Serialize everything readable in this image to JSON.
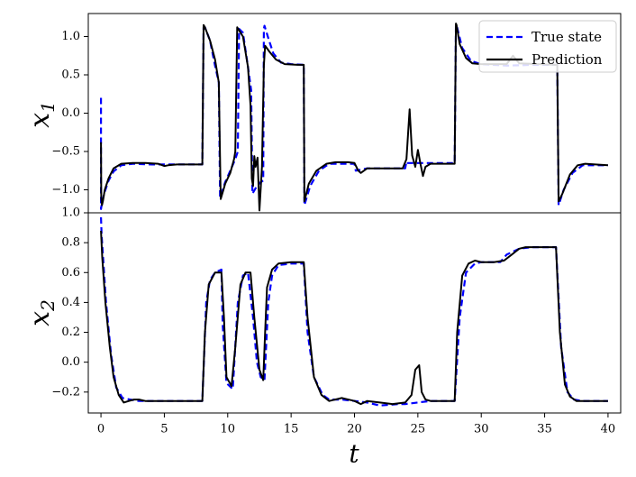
{
  "chart_data": {
    "type": "line",
    "xlabel": "t",
    "xlim": [
      -1,
      41
    ],
    "xticks": [
      "0",
      "5",
      "10",
      "15",
      "20",
      "25",
      "30",
      "35",
      "40"
    ],
    "legend": {
      "placement": "top-right",
      "entries": [
        "True state",
        "Prediction"
      ]
    },
    "colors": {
      "true_state": "#0000ff",
      "prediction": "#000000"
    },
    "grid": false,
    "panels": [
      {
        "ylabel": "x1",
        "ylabel_main": "x",
        "ylabel_sub": "1",
        "ylim": [
          -1.3,
          1.3
        ],
        "yticks": [
          "1.0",
          "0.5",
          "0.0",
          "−0.5",
          "−1.0"
        ],
        "series": [
          {
            "name": "True state",
            "style": "dashed",
            "x": [
              0,
              0.001,
              0.05,
              0.25,
              0.6,
              1.0,
              1.6,
              2.5,
              4.0,
              6.0,
              8.0,
              8.1,
              8.2,
              8.6,
              9.0,
              9.3,
              9.4,
              9.8,
              10.2,
              10.6,
              10.8,
              10.9,
              11.2,
              11.6,
              11.85,
              11.95,
              12.3,
              12.6,
              12.8,
              12.85,
              12.9,
              13.2,
              13.6,
              14.2,
              15.0,
              16.0,
              16.05,
              16.5,
              17.2,
              18.0,
              20.0,
              20.1,
              21.0,
              24.0,
              24.1,
              24.2,
              26.0,
              27.9,
              28.0,
              28.05,
              28.5,
              29.2,
              30.0,
              32.0,
              34.0,
              35.9,
              36.0,
              36.1,
              36.5,
              37.2,
              38.0,
              40.0
            ],
            "y": [
              0.2,
              -1.25,
              -1.2,
              -1.05,
              -0.88,
              -0.76,
              -0.68,
              -0.66,
              -0.67,
              -0.67,
              -0.67,
              1.12,
              1.12,
              0.95,
              0.62,
              0.4,
              -1.1,
              -0.9,
              -0.75,
              -0.6,
              -0.5,
              1.1,
              1.05,
              0.6,
              0.3,
              -1.05,
              -0.95,
              -0.9,
              -0.88,
              1.1,
              1.14,
              0.98,
              0.78,
              0.66,
              0.64,
              0.63,
              -1.2,
              -0.95,
              -0.75,
              -0.66,
              -0.66,
              -0.75,
              -0.72,
              -0.72,
              -0.63,
              -0.65,
              -0.65,
              -0.65,
              1.15,
              1.15,
              0.85,
              0.68,
              0.64,
              0.62,
              0.63,
              0.63,
              0.63,
              -1.2,
              -1.0,
              -0.78,
              -0.68,
              -0.68
            ]
          },
          {
            "name": "Prediction",
            "style": "solid",
            "x": [
              0,
              0.02,
              0.08,
              0.15,
              0.3,
              0.6,
              1.0,
              1.6,
              2.5,
              3.5,
              4.5,
              5.0,
              5.3,
              6.0,
              8.0,
              8.1,
              8.2,
              8.6,
              9.0,
              9.3,
              9.45,
              9.8,
              10.2,
              10.5,
              10.6,
              10.75,
              11.2,
              11.6,
              11.8,
              11.9,
              12.0,
              12.1,
              12.2,
              12.35,
              12.5,
              12.7,
              12.85,
              12.95,
              13.3,
              13.8,
              14.5,
              15.5,
              16.0,
              16.05,
              16.4,
              17.0,
              17.8,
              18.5,
              19.5,
              20.0,
              20.3,
              20.5,
              21.0,
              22.5,
              23.8,
              24.1,
              24.35,
              24.55,
              24.8,
              25.0,
              25.2,
              25.4,
              25.6,
              26.0,
              26.5,
              27.9,
              28.0,
              28.05,
              28.3,
              28.8,
              29.3,
              30.0,
              31.0,
              32.0,
              32.5,
              33.0,
              35.9,
              36.0,
              36.1,
              36.4,
              37.0,
              37.6,
              38.2,
              39.0,
              40.0
            ],
            "y": [
              -0.38,
              -1.1,
              -1.2,
              -1.15,
              -1.0,
              -0.85,
              -0.72,
              -0.66,
              -0.65,
              -0.65,
              -0.66,
              -0.69,
              -0.68,
              -0.67,
              -0.67,
              1.15,
              1.12,
              0.95,
              0.7,
              0.4,
              -1.12,
              -0.92,
              -0.78,
              -0.6,
              -0.5,
              1.12,
              1.0,
              0.6,
              0.1,
              -0.85,
              -0.95,
              -0.56,
              -0.7,
              -0.58,
              -1.27,
              -0.7,
              0.62,
              0.88,
              0.8,
              0.7,
              0.64,
              0.63,
              0.63,
              -1.15,
              -0.92,
              -0.75,
              -0.66,
              -0.64,
              -0.64,
              -0.65,
              -0.75,
              -0.78,
              -0.72,
              -0.72,
              -0.72,
              -0.6,
              0.05,
              -0.55,
              -0.7,
              -0.48,
              -0.66,
              -0.82,
              -0.7,
              -0.66,
              -0.66,
              -0.66,
              1.17,
              1.15,
              0.9,
              0.72,
              0.65,
              0.64,
              0.64,
              0.64,
              0.75,
              0.65,
              0.63,
              0.63,
              -1.15,
              -1.05,
              -0.8,
              -0.68,
              -0.66,
              -0.67,
              -0.68
            ]
          }
        ]
      },
      {
        "ylabel": "x2",
        "ylabel_main": "x",
        "ylabel_sub": "2",
        "ylim": [
          -0.34,
          1.0
        ],
        "yticks": [
          "1.0",
          "0.8",
          "0.6",
          "0.4",
          "0.2",
          "0.0",
          "−0.2"
        ],
        "series": [
          {
            "name": "True state",
            "style": "dashed",
            "x": [
              0,
              0.05,
              0.4,
              0.8,
              1.2,
              1.7,
              2.3,
              3.0,
              4.0,
              5.0,
              6.0,
              7.0,
              8.0,
              8.3,
              8.6,
              9.0,
              9.5,
              9.6,
              9.9,
              10.4,
              10.8,
              11.2,
              11.6,
              12.0,
              12.3,
              12.6,
              12.9,
              13.2,
              13.5,
              14.0,
              15.0,
              16.0,
              16.3,
              16.8,
              17.5,
              18.0,
              19.0,
              20.0,
              21.0,
              22.0,
              23.5,
              24.0,
              26.0,
              27.9,
              28.3,
              28.8,
              29.5,
              30.0,
              31.0,
              31.5,
              32.0,
              33.0,
              34.0,
              35.9,
              36.3,
              36.8,
              37.3,
              38.0,
              40.0
            ],
            "y": [
              0.97,
              0.85,
              0.4,
              0.05,
              -0.17,
              -0.24,
              -0.25,
              -0.26,
              -0.26,
              -0.26,
              -0.26,
              -0.26,
              -0.26,
              0.4,
              0.55,
              0.6,
              0.62,
              0.25,
              -0.14,
              -0.18,
              0.4,
              0.58,
              0.6,
              0.3,
              0.0,
              -0.1,
              -0.12,
              0.4,
              0.58,
              0.65,
              0.66,
              0.66,
              0.2,
              -0.1,
              -0.22,
              -0.25,
              -0.25,
              -0.26,
              -0.27,
              -0.29,
              -0.28,
              -0.28,
              -0.26,
              -0.26,
              0.3,
              0.6,
              0.66,
              0.67,
              0.67,
              0.67,
              0.72,
              0.76,
              0.77,
              0.77,
              0.1,
              -0.2,
              -0.25,
              -0.26,
              -0.26
            ]
          },
          {
            "name": "Prediction",
            "style": "solid",
            "x": [
              0,
              0.1,
              0.35,
              0.7,
              1.0,
              1.4,
              1.8,
              2.2,
              2.6,
              3.0,
              3.5,
              4.0,
              5.0,
              6.0,
              7.0,
              8.0,
              8.2,
              8.5,
              9.0,
              9.5,
              9.7,
              9.9,
              10.3,
              10.6,
              11.0,
              11.4,
              11.8,
              12.1,
              12.5,
              12.8,
              12.95,
              13.1,
              13.5,
              14.0,
              15.0,
              16.0,
              16.3,
              16.8,
              17.4,
              18.0,
              19.0,
              20.0,
              20.5,
              21.0,
              22.0,
              23.0,
              24.0,
              24.5,
              24.8,
              25.1,
              25.3,
              25.6,
              26.0,
              27.0,
              27.9,
              28.1,
              28.5,
              29.0,
              29.5,
              30.0,
              31.0,
              31.8,
              32.4,
              32.7,
              33.0,
              33.5,
              35.9,
              36.2,
              36.6,
              37.0,
              37.5,
              38.0,
              39.0,
              40.0
            ],
            "y": [
              0.88,
              0.7,
              0.4,
              0.1,
              -0.1,
              -0.22,
              -0.27,
              -0.26,
              -0.25,
              -0.25,
              -0.26,
              -0.26,
              -0.26,
              -0.26,
              -0.26,
              -0.26,
              0.2,
              0.52,
              0.6,
              0.6,
              0.3,
              -0.1,
              -0.16,
              0.1,
              0.52,
              0.6,
              0.6,
              0.3,
              -0.05,
              -0.12,
              0.2,
              0.5,
              0.62,
              0.66,
              0.67,
              0.67,
              0.3,
              -0.1,
              -0.22,
              -0.26,
              -0.24,
              -0.26,
              -0.28,
              -0.26,
              -0.27,
              -0.28,
              -0.27,
              -0.22,
              -0.05,
              -0.02,
              -0.2,
              -0.25,
              -0.26,
              -0.26,
              -0.26,
              0.2,
              0.58,
              0.66,
              0.68,
              0.67,
              0.67,
              0.68,
              0.72,
              0.74,
              0.76,
              0.77,
              0.77,
              0.2,
              -0.15,
              -0.23,
              -0.26,
              -0.26,
              -0.26,
              -0.26
            ]
          }
        ]
      }
    ]
  }
}
